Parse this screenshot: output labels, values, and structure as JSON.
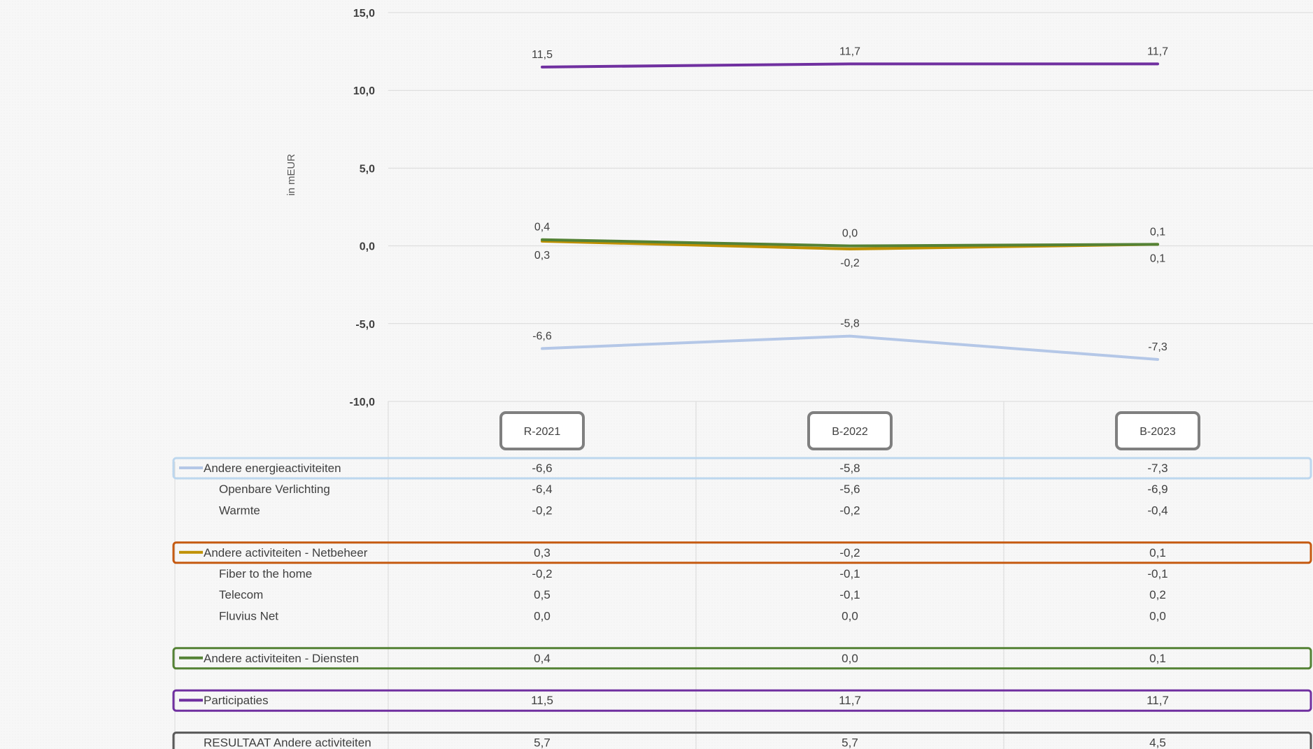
{
  "chart_data": {
    "type": "line",
    "ylabel": "in mEUR",
    "ylim": [
      -10,
      15
    ],
    "yticks": [
      "15,0",
      "10,0",
      "5,0",
      "0,0",
      "-5,0",
      "-10,0"
    ],
    "ytick_values": [
      15,
      10,
      5,
      0,
      -5,
      -10
    ],
    "categories": [
      "R-2021",
      "B-2022",
      "B-2023"
    ],
    "grid": true,
    "series": [
      {
        "name": "Andere energieactiviteiten",
        "color": "#b4c7e7",
        "values": [
          -6.6,
          -5.8,
          -7.3
        ],
        "labels": [
          "-6,6",
          "-5,8",
          "-7,3"
        ],
        "label_pos": "above"
      },
      {
        "name": "Andere activiteiten - Netbeheer",
        "color": "#bf9000",
        "values": [
          0.3,
          -0.2,
          0.1
        ],
        "labels": [
          "0,3",
          "-0,2",
          "0,1"
        ],
        "label_pos": "below"
      },
      {
        "name": "Andere activiteiten - Diensten",
        "color": "#548235",
        "values": [
          0.4,
          0.0,
          0.1
        ],
        "labels": [
          "0,4",
          "0,0",
          "0,1"
        ],
        "label_pos": "above"
      },
      {
        "name": "Participaties",
        "color": "#7030a0",
        "values": [
          11.5,
          11.7,
          11.7
        ],
        "labels": [
          "11,5",
          "11,7",
          "11,7"
        ],
        "label_pos": "above"
      }
    ],
    "table": {
      "rows": [
        {
          "label": "Andere energieactiviteiten",
          "values": [
            "-6,6",
            "-5,8",
            "-7,3"
          ],
          "indent": false,
          "series": 0,
          "box": "#bdd7ee"
        },
        {
          "label": "Openbare Verlichting",
          "values": [
            "-6,4",
            "-5,6",
            "-6,9"
          ],
          "indent": true
        },
        {
          "label": "Warmte",
          "values": [
            "-0,2",
            "-0,2",
            "-0,4"
          ],
          "indent": true
        },
        {
          "label": "",
          "values": [
            "",
            "",
            ""
          ],
          "indent": false
        },
        {
          "label": "Andere activiteiten - Netbeheer",
          "values": [
            "0,3",
            "-0,2",
            "0,1"
          ],
          "indent": false,
          "series": 1,
          "box": "#c55a11"
        },
        {
          "label": "Fiber to the home",
          "values": [
            "-0,2",
            "-0,1",
            "-0,1"
          ],
          "indent": true
        },
        {
          "label": "Telecom",
          "values": [
            "0,5",
            "-0,1",
            "0,2"
          ],
          "indent": true
        },
        {
          "label": "Fluvius Net",
          "values": [
            "0,0",
            "0,0",
            "0,0"
          ],
          "indent": true
        },
        {
          "label": "",
          "values": [
            "",
            "",
            ""
          ],
          "indent": false
        },
        {
          "label": "Andere activiteiten - Diensten",
          "values": [
            "0,4",
            "0,0",
            "0,1"
          ],
          "indent": false,
          "series": 2,
          "box": "#548235"
        },
        {
          "label": "",
          "values": [
            "",
            "",
            ""
          ],
          "indent": false
        },
        {
          "label": "Participaties",
          "values": [
            "11,5",
            "11,7",
            "11,7"
          ],
          "indent": false,
          "series": 3,
          "box": "#7030a0"
        },
        {
          "label": "",
          "values": [
            "",
            "",
            ""
          ],
          "indent": false
        },
        {
          "label": "RESULTAAT Andere activiteiten",
          "values": [
            "5,7",
            "5,7",
            "4,5"
          ],
          "indent": false,
          "box": "#595959"
        }
      ]
    }
  }
}
